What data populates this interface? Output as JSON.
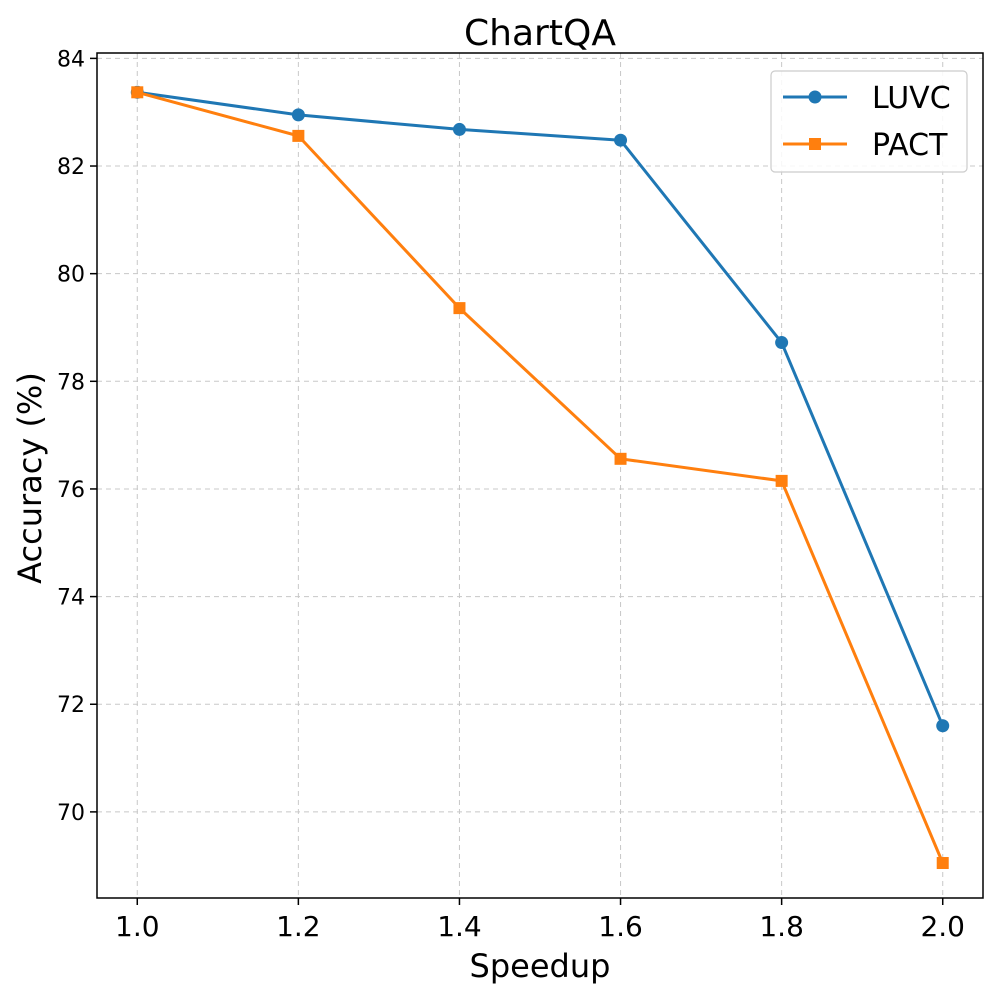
{
  "chart_data": {
    "type": "line",
    "title": "ChartQA",
    "xlabel": "Speedup",
    "ylabel": "Accuracy (%)",
    "x": [
      1.0,
      1.2,
      1.4,
      1.6,
      1.8,
      2.0
    ],
    "x_tick_labels": [
      "1.0",
      "1.2",
      "1.4",
      "1.6",
      "1.8",
      "2.0"
    ],
    "y_ticks": [
      70,
      72,
      74,
      76,
      78,
      80,
      82,
      84
    ],
    "y_tick_labels": [
      "70",
      "72",
      "74",
      "76",
      "78",
      "80",
      "82",
      "84"
    ],
    "xlim": [
      0.95,
      2.05
    ],
    "ylim": [
      68.4,
      84.1
    ],
    "grid": true,
    "legend_position": "top-right",
    "series": [
      {
        "name": "LUVC",
        "color": "#1f77b4",
        "marker": "circle",
        "values": [
          83.37,
          82.95,
          82.68,
          82.48,
          78.72,
          71.6
        ]
      },
      {
        "name": "PACT",
        "color": "#ff7f0e",
        "marker": "square",
        "values": [
          83.37,
          82.56,
          79.36,
          76.56,
          76.15,
          69.05
        ]
      }
    ]
  }
}
